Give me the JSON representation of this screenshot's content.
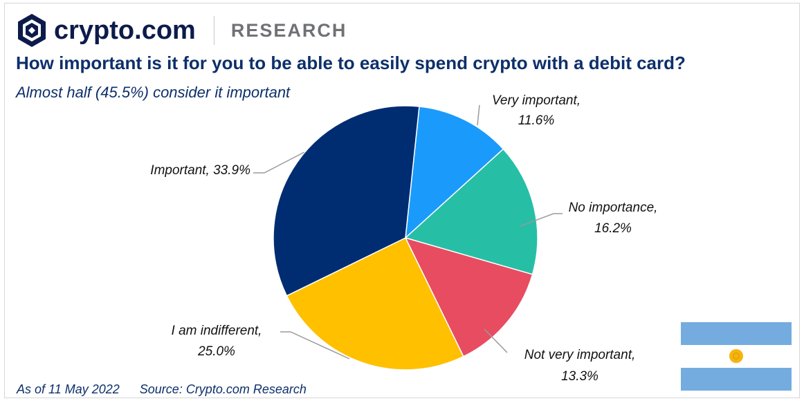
{
  "header": {
    "brand": "crypto.com",
    "section": "RESEARCH"
  },
  "title": "How important is it for you to be able to easily spend crypto with a debit card?",
  "subtitle": "Almost half (45.5%) consider it important",
  "footer": {
    "date": "As of 11 May 2022",
    "source": "Source: Crypto.com Research"
  },
  "flag": {
    "icon": "argentina-flag-icon",
    "colors": {
      "blue": "#74ACDF",
      "white": "#FFFFFF",
      "sun": "#F6B40E"
    }
  },
  "chart_data": {
    "type": "pie",
    "title": "How important is it for you to be able to easily spend crypto with a debit card?",
    "slices": [
      {
        "name": "Very important",
        "value": 11.6,
        "label_line1": "Very important,",
        "label_line2": "11.6%",
        "color": "#1A9BFC"
      },
      {
        "name": "No importance",
        "value": 16.2,
        "label_line1": "No importance,",
        "label_line2": "16.2%",
        "color": "#26BFA6"
      },
      {
        "name": "Not very important",
        "value": 13.3,
        "label_line1": "Not very important,",
        "label_line2": "13.3%",
        "color": "#E84C61"
      },
      {
        "name": "I am indifferent",
        "value": 25.0,
        "label_line1": "I am indifferent,",
        "label_line2": "25.0%",
        "color": "#FFC000"
      },
      {
        "name": "Important",
        "value": 33.9,
        "label_line1": "Important, 33.9%",
        "label_line2": "",
        "color": "#002D72"
      }
    ],
    "start_angle_deg": 6,
    "direction": "clockwise",
    "legend": "none"
  }
}
